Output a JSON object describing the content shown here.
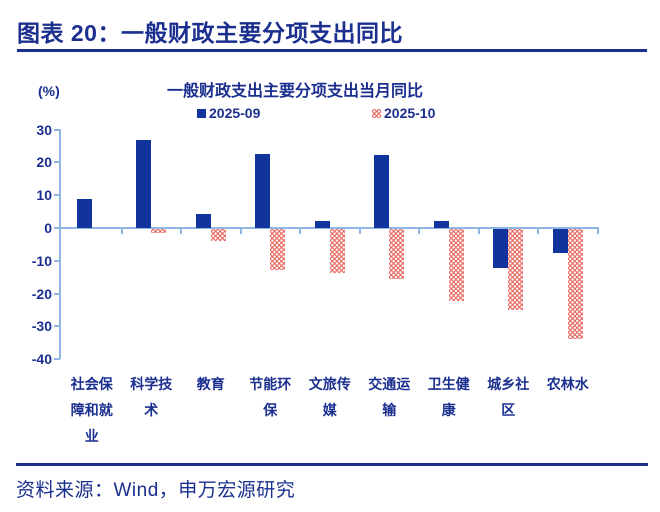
{
  "header": {
    "title": "图表 20：一般财政主要分项支出同比"
  },
  "footer": {
    "source": "资料来源：Wind，申万宏源研究"
  },
  "colors": {
    "navy_text": "#1B2F8F",
    "bar_blue": "#11349C",
    "bar_red": "#E7645D",
    "axis_light_blue": "#8FB6E4"
  },
  "chart_data": {
    "type": "bar",
    "title": "一般财政支出主要分项支出当月同比",
    "unit_label": "(%)",
    "xlabel": "",
    "ylabel": "(%)",
    "ylim": [
      -40,
      30
    ],
    "y_ticks": [
      30,
      20,
      10,
      0,
      -10,
      -20,
      -30,
      -40
    ],
    "grid": false,
    "legend_position": "top",
    "categories": [
      "社会保障和就业",
      "科学技术",
      "教育",
      "节能环保",
      "文旅传媒",
      "交通运输",
      "卫生健康",
      "城乡社区",
      "农林水"
    ],
    "category_label_lines": [
      [
        "社会保",
        "障和就",
        "业"
      ],
      [
        "科学技",
        "术"
      ],
      [
        "教育"
      ],
      [
        "节能环",
        "保"
      ],
      [
        "文旅传",
        "媒"
      ],
      [
        "交通运",
        "输"
      ],
      [
        "卫生健",
        "康"
      ],
      [
        "城乡社",
        "区"
      ],
      [
        "农林水"
      ]
    ],
    "series": [
      {
        "name": "2025-09",
        "style": "solid-blue",
        "values": [
          8.7,
          26.7,
          4.4,
          22.5,
          2.2,
          22.2,
          2.0,
          -12.0,
          -7.2
        ]
      },
      {
        "name": "2025-10",
        "style": "dotted-red",
        "values": [
          0,
          -1.2,
          -3.6,
          -12.4,
          -13.4,
          -15.1,
          -21.9,
          -24.7,
          -33.4
        ]
      }
    ]
  }
}
